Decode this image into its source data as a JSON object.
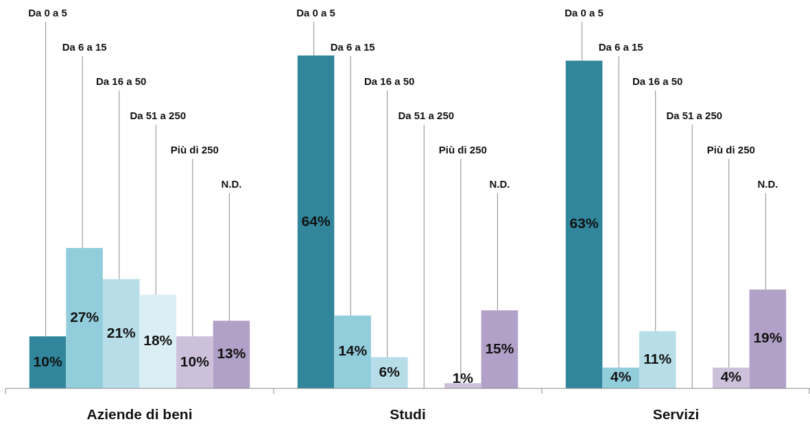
{
  "chart_data": {
    "type": "bar",
    "categories": [
      "Aziende di beni",
      "Studi",
      "Servizi"
    ],
    "series": [
      {
        "name": "Da 0 a 5",
        "color": "#31869b",
        "values": [
          10,
          64,
          63
        ],
        "value_labels": [
          "10%",
          "64%",
          "63%"
        ]
      },
      {
        "name": "Da 6 a 15",
        "color": "#92cddc",
        "values": [
          27,
          14,
          4
        ],
        "value_labels": [
          "27%",
          "14%",
          "4%"
        ]
      },
      {
        "name": "Da 16 a 50",
        "color": "#b7dee8",
        "values": [
          21,
          6,
          11
        ],
        "value_labels": [
          "21%",
          "6%",
          "11%"
        ]
      },
      {
        "name": "Da 51 a 250",
        "color": "#daeef3",
        "values": [
          18,
          null,
          null
        ],
        "value_labels": [
          "18%",
          null,
          null
        ]
      },
      {
        "name": "Più di 250",
        "color": "#ccc0da",
        "values": [
          10,
          1,
          4
        ],
        "value_labels": [
          "10%",
          "1%",
          "4%"
        ]
      },
      {
        "name": "N.D.",
        "color": "#b1a0c7",
        "values": [
          13,
          15,
          19
        ],
        "value_labels": [
          "13%",
          "15%",
          "19%"
        ]
      }
    ]
  }
}
